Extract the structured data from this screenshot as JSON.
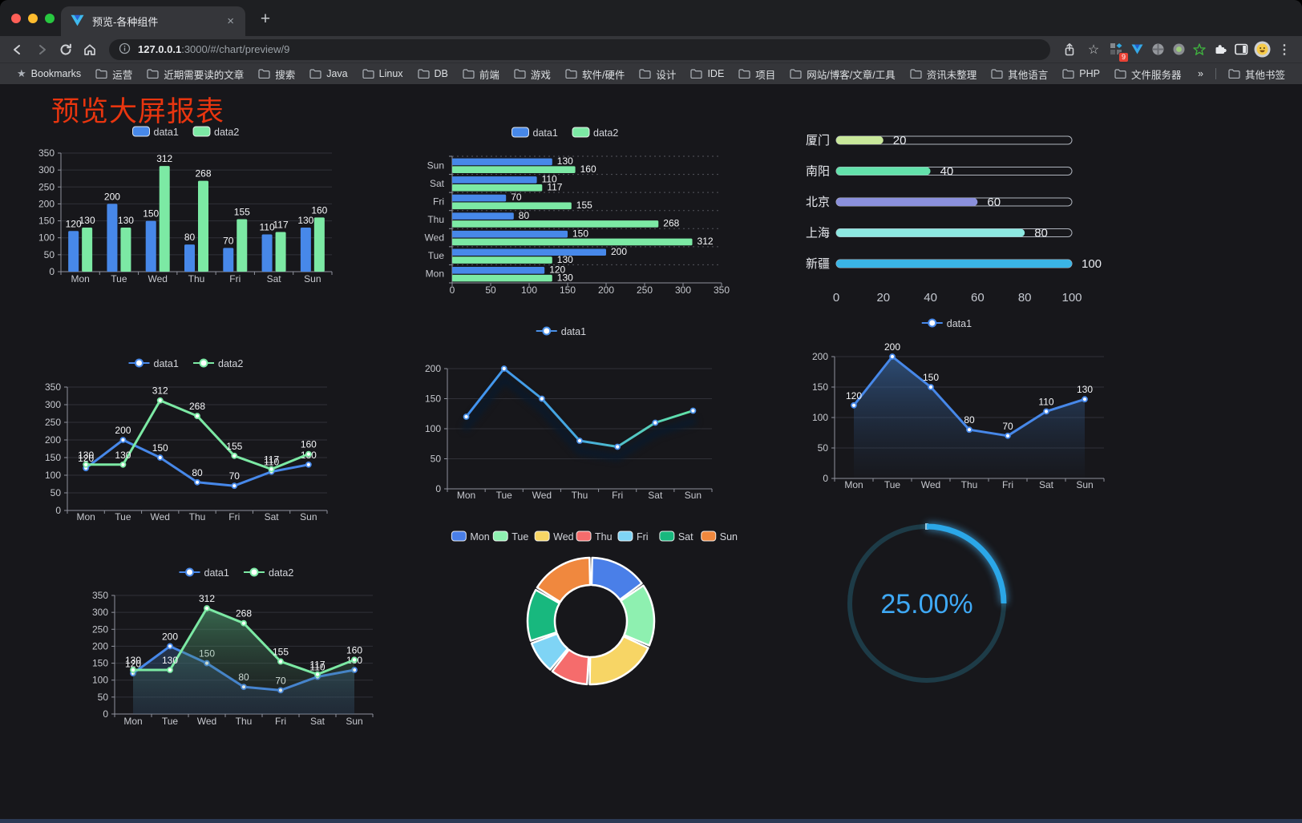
{
  "browser": {
    "tab_title": "预览-各种组件",
    "close_tab": "×",
    "new_tab": "+",
    "url": {
      "host": "127.0.0.1",
      "rest": ":3000/#/chart/preview/9"
    },
    "extension_badge": "9",
    "bookmarks_bar": {
      "star_label": "Bookmarks",
      "folders": [
        "运营",
        "近期需要读的文章",
        "搜索",
        "Java",
        "Linux",
        "DB",
        "前端",
        "游戏",
        "软件/硬件",
        "设计",
        "IDE",
        "项目",
        "网站/博客/文章/工具",
        "资讯未整理",
        "其他语言",
        "PHP",
        "文件服务器"
      ],
      "overflow": "»",
      "other": "其他书签"
    }
  },
  "page": {
    "title": "预览大屏报表",
    "title_color": "#e8350f",
    "background": "#17171b"
  },
  "chart_data": [
    {
      "id": "grouped-bar-vertical",
      "type": "bar",
      "orientation": "vertical",
      "categories": [
        "Mon",
        "Tue",
        "Wed",
        "Thu",
        "Fri",
        "Sat",
        "Sun"
      ],
      "series": [
        {
          "name": "data1",
          "color": "#4788e9",
          "values": [
            120,
            200,
            150,
            80,
            70,
            110,
            130
          ]
        },
        {
          "name": "data2",
          "color": "#7ce9a4",
          "values": [
            130,
            130,
            312,
            268,
            155,
            117,
            160
          ]
        }
      ],
      "ylim": [
        0,
        350
      ],
      "ytick_step": 50,
      "legend_position": "top",
      "grid": true
    },
    {
      "id": "grouped-bar-horizontal",
      "type": "bar",
      "orientation": "horizontal",
      "categories": [
        "Mon",
        "Tue",
        "Wed",
        "Thu",
        "Fri",
        "Sat",
        "Sun"
      ],
      "categories_display_order": "bottom-to-top",
      "series": [
        {
          "name": "data1",
          "color": "#4788e9",
          "values": [
            120,
            200,
            150,
            80,
            70,
            110,
            130
          ]
        },
        {
          "name": "data2",
          "color": "#7ce9a4",
          "values": [
            130,
            130,
            312,
            268,
            155,
            117,
            160
          ]
        }
      ],
      "xlim": [
        0,
        350
      ],
      "xticks": [
        0,
        50,
        100,
        150,
        200,
        250,
        300,
        350
      ],
      "legend_position": "top"
    },
    {
      "id": "city-progress",
      "type": "bar",
      "orientation": "horizontal",
      "categories": [
        "厦门",
        "南阳",
        "北京",
        "上海",
        "新疆"
      ],
      "values": [
        20,
        40,
        60,
        80,
        100
      ],
      "colors": [
        "#c9e89b",
        "#63e1ab",
        "#8b90dc",
        "#8de8e1",
        "#3ab5e6"
      ],
      "xlim": [
        0,
        100
      ],
      "xticks": [
        0,
        20,
        40,
        60,
        80,
        100
      ],
      "grid": false
    },
    {
      "id": "dual-line",
      "type": "line",
      "categories": [
        "Mon",
        "Tue",
        "Wed",
        "Thu",
        "Fri",
        "Sat",
        "Sun"
      ],
      "series": [
        {
          "name": "data1",
          "color": "#4788e9",
          "values": [
            120,
            200,
            150,
            80,
            70,
            110,
            130
          ]
        },
        {
          "name": "data2",
          "color": "#7ce9a4",
          "values": [
            130,
            130,
            312,
            268,
            155,
            117,
            160
          ]
        }
      ],
      "ylim": [
        0,
        350
      ],
      "ytick_step": 50,
      "show_labels": true,
      "legend_position": "top"
    },
    {
      "id": "gradient-line",
      "type": "line",
      "categories": [
        "Mon",
        "Tue",
        "Wed",
        "Thu",
        "Fri",
        "Sat",
        "Sun"
      ],
      "series": [
        {
          "name": "data1",
          "gradient": [
            "#4292f2",
            "#45aade",
            "#62e6a5"
          ],
          "marker_color": "#4a90e8",
          "values": [
            120,
            200,
            150,
            80,
            70,
            110,
            130
          ]
        }
      ],
      "ylim": [
        0,
        200
      ],
      "ytick_step": 50,
      "show_labels": false,
      "shadow": true,
      "legend_position": "top"
    },
    {
      "id": "area-line-single",
      "type": "area",
      "categories": [
        "Mon",
        "Tue",
        "Wed",
        "Thu",
        "Fri",
        "Sat",
        "Sun"
      ],
      "series": [
        {
          "name": "data1",
          "color": "#4788e9",
          "area": {
            "from": "rgba(64,120,190,0.55)",
            "to": "rgba(40,70,110,0.03)"
          },
          "values": [
            120,
            200,
            150,
            80,
            70,
            110,
            130
          ]
        }
      ],
      "ylim": [
        0,
        200
      ],
      "ytick_step": 50,
      "show_labels": true,
      "legend_position": "top"
    },
    {
      "id": "dual-area",
      "type": "area",
      "categories": [
        "Mon",
        "Tue",
        "Wed",
        "Thu",
        "Fri",
        "Sat",
        "Sun"
      ],
      "series": [
        {
          "name": "data1",
          "color": "#4788e9",
          "area": {
            "from": "rgba(52,86,132,0.45)",
            "to": "rgba(52,86,132,0.25)"
          },
          "values": [
            120,
            200,
            150,
            80,
            70,
            110,
            130
          ]
        },
        {
          "name": "data2",
          "color": "#7ce9a4",
          "area": {
            "from": "rgba(82,170,120,0.55)",
            "to": "rgba(60,90,70,0.05)"
          },
          "values": [
            130,
            130,
            312,
            268,
            155,
            117,
            160
          ]
        }
      ],
      "ylim": [
        0,
        350
      ],
      "ytick_step": 50,
      "show_labels": true,
      "legend_position": "top"
    },
    {
      "id": "weekday-donut",
      "type": "pie",
      "categories": [
        "Mon",
        "Tue",
        "Wed",
        "Thu",
        "Fri",
        "Sat",
        "Sun"
      ],
      "values": [
        120,
        130,
        150,
        80,
        70,
        110,
        130
      ],
      "colors": [
        "#4a7fe8",
        "#8ef0b0",
        "#f7d565",
        "#f56c6c",
        "#7fd4f5",
        "#18b87e",
        "#f0883e"
      ],
      "donut": true,
      "legend_position": "top"
    },
    {
      "id": "percent-gauge",
      "type": "gauge",
      "value": 25,
      "label": "25.00%",
      "color": "#2ba7e8",
      "track_color": "#1d3b47",
      "text_color": "#3fa9f5"
    }
  ]
}
